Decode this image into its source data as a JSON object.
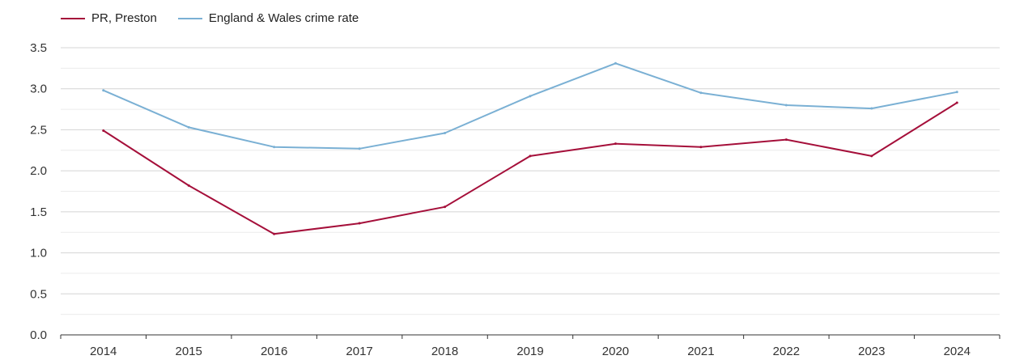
{
  "chart_data": {
    "type": "line",
    "title": "",
    "xlabel": "",
    "ylabel": "",
    "categories": [
      "2014",
      "2015",
      "2016",
      "2017",
      "2018",
      "2019",
      "2020",
      "2021",
      "2022",
      "2023",
      "2024"
    ],
    "ylim": [
      0,
      3.5
    ],
    "yticks": [
      "0.0",
      "0.5",
      "1.0",
      "1.5",
      "2.0",
      "2.5",
      "3.0",
      "3.5"
    ],
    "grid": true,
    "legend_position": "top-left",
    "series": [
      {
        "name": "PR, Preston",
        "color": "#a50f3a",
        "values": [
          2.49,
          1.82,
          1.23,
          1.36,
          1.56,
          2.18,
          2.33,
          2.29,
          2.38,
          2.18,
          2.83
        ]
      },
      {
        "name": "England & Wales crime rate",
        "color": "#7ab0d4",
        "values": [
          2.98,
          2.53,
          2.29,
          2.27,
          2.46,
          2.91,
          3.31,
          2.95,
          2.8,
          2.76,
          2.96
        ]
      }
    ]
  }
}
